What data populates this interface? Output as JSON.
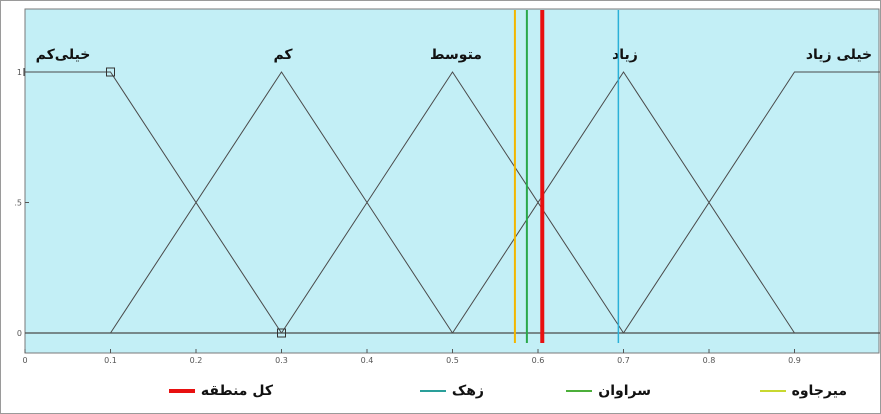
{
  "chart_data": {
    "type": "line",
    "xlim": [
      0,
      1
    ],
    "ylim": [
      0,
      1
    ],
    "x_ticks": [
      "0",
      "0.1",
      "0.2",
      "0.3",
      "0.4",
      "0.5",
      "0.6",
      "0.7",
      "0.8",
      "0.9"
    ],
    "y_ticks": [
      {
        "value": 1,
        "label": "1"
      },
      {
        "value": 0.5,
        "label": ".5"
      },
      {
        "value": 0,
        "label": "0"
      }
    ],
    "series": [
      {
        "name": "خیلی‌کم",
        "points": [
          [
            0,
            1
          ],
          [
            0.1,
            1
          ],
          [
            0.3,
            0
          ]
        ]
      },
      {
        "name": "کم",
        "points": [
          [
            0.1,
            0
          ],
          [
            0.3,
            1
          ],
          [
            0.5,
            0
          ]
        ]
      },
      {
        "name": "متوسط",
        "points": [
          [
            0.3,
            0
          ],
          [
            0.5,
            1
          ],
          [
            0.7,
            0
          ]
        ]
      },
      {
        "name": "زیاد",
        "points": [
          [
            0.5,
            0
          ],
          [
            0.7,
            1
          ],
          [
            0.9,
            0
          ]
        ]
      },
      {
        "name": "خیلی زیاد",
        "points": [
          [
            0.7,
            0
          ],
          [
            0.9,
            1
          ],
          [
            1,
            1
          ]
        ]
      }
    ],
    "markers": [
      {
        "name": "میرجاوه",
        "x": 0.573,
        "color": "#f2b600",
        "width": 2
      },
      {
        "name": "سراوان",
        "x": 0.587,
        "color": "#2aa84a",
        "width": 2
      },
      {
        "name": "کل منطقه",
        "x": 0.605,
        "color": "#e81010",
        "width": 4
      },
      {
        "name": "زهک",
        "x": 0.694,
        "color": "#2ab0d8",
        "width": 1.5
      }
    ],
    "legend": [
      {
        "name": "کل منطقه",
        "color": "#e81010"
      },
      {
        "name": "زهک",
        "color": "#2a9f9a"
      },
      {
        "name": "سراوان",
        "color": "#4caf3a"
      },
      {
        "name": "میرجاوه",
        "color": "#c8d830"
      }
    ],
    "colors": {
      "background": "#c3eff6",
      "mf_line": "#4a4a4a"
    }
  }
}
